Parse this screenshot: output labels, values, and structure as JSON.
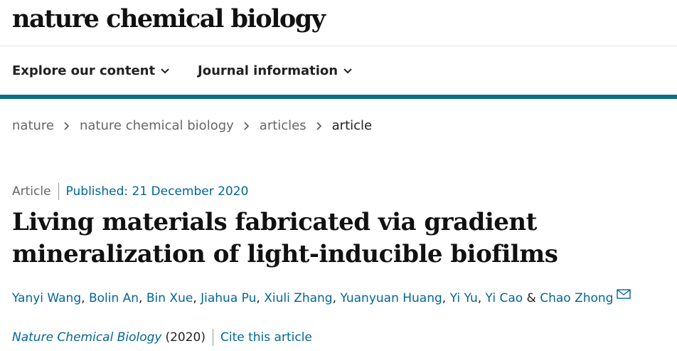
{
  "header": {
    "logo": "nature chemical biology"
  },
  "nav": {
    "items": [
      "Explore our content",
      "Journal information"
    ]
  },
  "breadcrumb": [
    "nature",
    "nature chemical biology",
    "articles",
    "article"
  ],
  "article": {
    "type": "Article",
    "published": "Published: 21 December 2020",
    "title": "Living materials fabricated via gradient mineralization of light-inducible biofilms",
    "authors": [
      "Yanyi Wang",
      "Bolin An",
      "Bin Xue",
      "Jiahua Pu",
      "Xiuli Zhang",
      "Yuanyuan Huang",
      "Yi Yu",
      "Yi Cao",
      "Chao Zhong"
    ],
    "author_separator": ",",
    "last_author_separator": "&",
    "journal": "Nature Chemical Biology",
    "year": "(2020)",
    "cite": "Cite this article"
  }
}
